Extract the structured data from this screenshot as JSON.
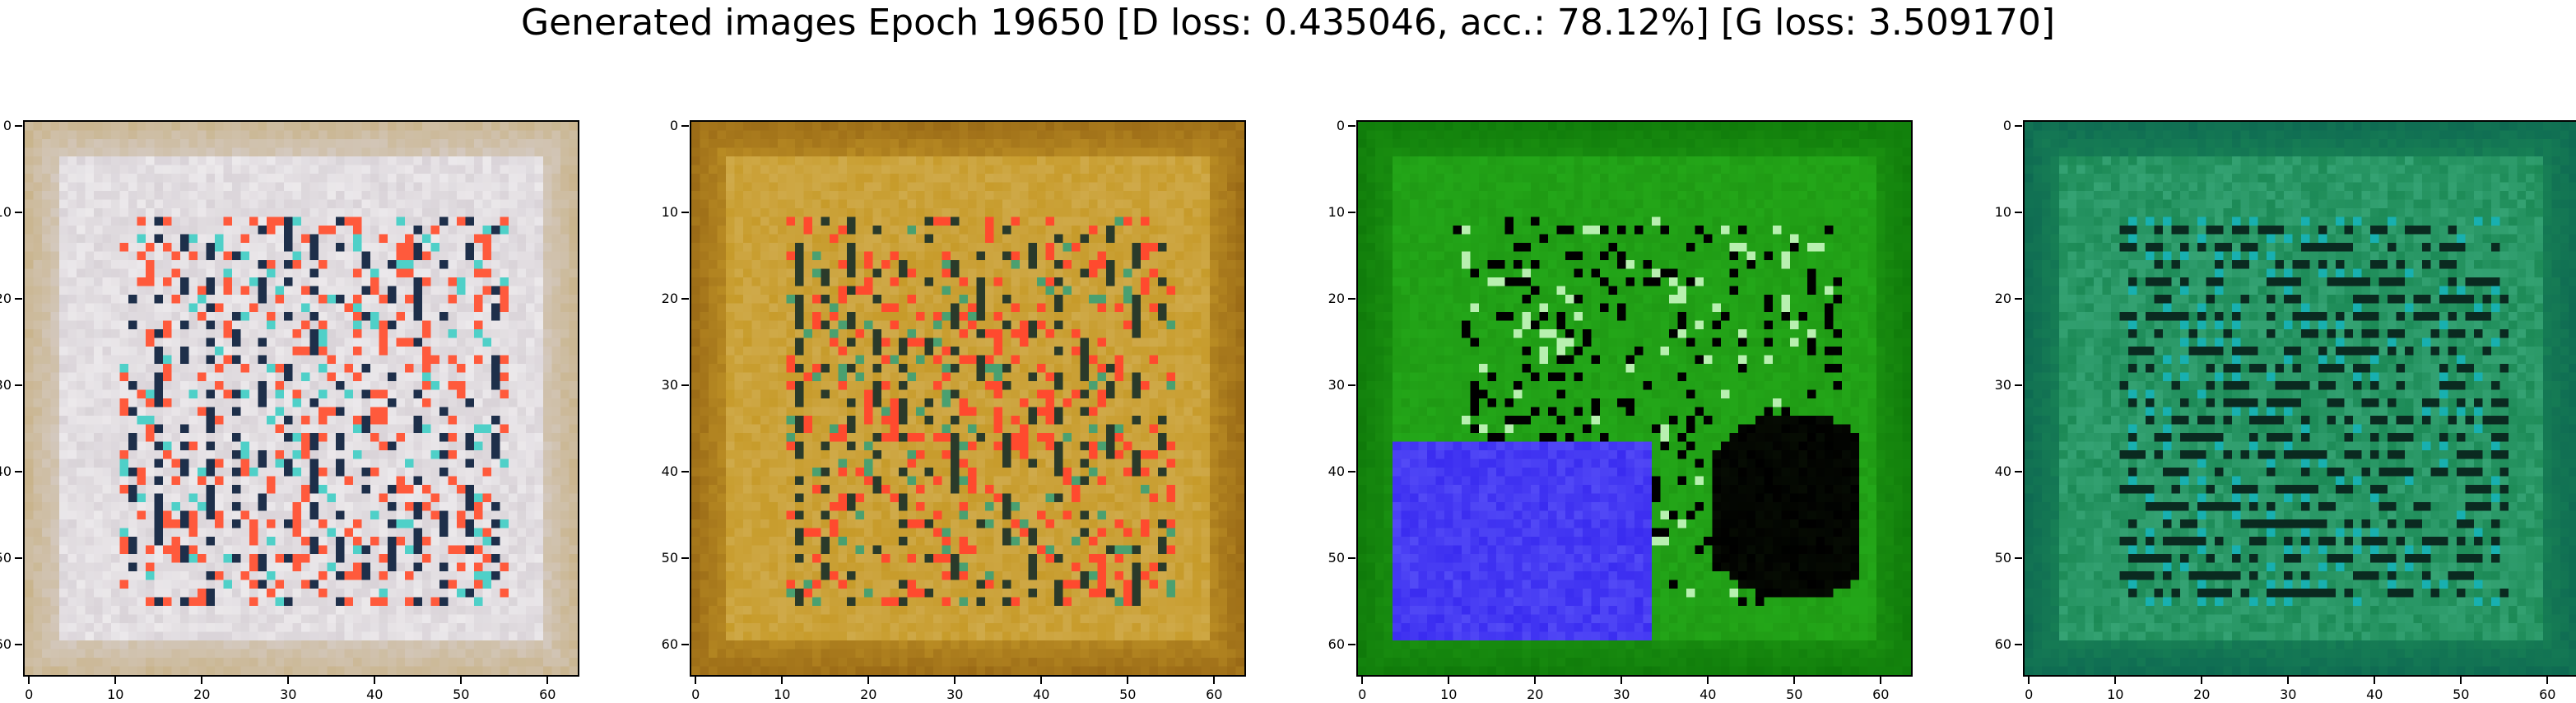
{
  "title": "Generated images Epoch 19650 [D loss: 0.435046, acc.: 78.12%] [G loss: 3.509170]",
  "axis": {
    "x_ticks": [
      "0",
      "10",
      "20",
      "30",
      "40",
      "50",
      "60"
    ],
    "y_ticks": [
      "0",
      "10",
      "20",
      "30",
      "40",
      "50",
      "60"
    ],
    "x_tick_values": [
      0,
      10,
      20,
      30,
      40,
      50,
      60
    ],
    "y_tick_values": [
      0,
      10,
      20,
      30,
      40,
      50,
      60
    ],
    "extent": [
      -0.5,
      63.5
    ]
  },
  "panels": [
    {
      "name": "sample-1",
      "palette": {
        "base": "#d9d3d8",
        "border": "#c9b48c",
        "accent": "#ff5a3c",
        "dark": "#1e2f4a",
        "alt": "#4fd0c8"
      }
    },
    {
      "name": "sample-2",
      "palette": {
        "base": "#c79b2a",
        "border": "#9a6a16",
        "accent": "#ff4a2e",
        "dark": "#2a3a2a",
        "alt": "#4aa070"
      }
    },
    {
      "name": "sample-3",
      "palette": {
        "base": "#1f9a14",
        "border": "#0f7a0a",
        "accent": "#3a2cf0",
        "dark": "#000000",
        "alt": "#b8f0b0"
      }
    },
    {
      "name": "sample-4",
      "palette": {
        "base": "#1c8a56",
        "border": "#0e6a52",
        "accent": "#18b0b0",
        "dark": "#0a2a20",
        "alt": "#5ac8a0"
      }
    }
  ]
}
